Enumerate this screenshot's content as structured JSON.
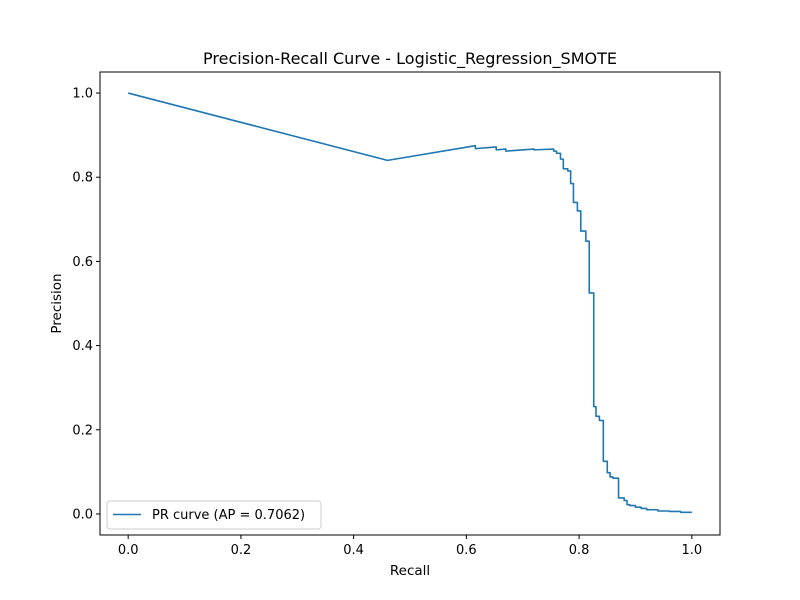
{
  "colors": {
    "series": "#1f77b4",
    "axes": "#000000",
    "background": "#ffffff",
    "legend_border": "#cccccc"
  },
  "chart_data": {
    "type": "line",
    "title": "Precision-Recall Curve - Logistic_Regression_SMOTE",
    "xlabel": "Recall",
    "ylabel": "Precision",
    "xlim": [
      -0.05,
      1.05
    ],
    "ylim": [
      -0.05,
      1.05
    ],
    "xticks": [
      0.0,
      0.2,
      0.4,
      0.6,
      0.8,
      1.0
    ],
    "yticks": [
      0.0,
      0.2,
      0.4,
      0.6,
      0.8,
      1.0
    ],
    "xtick_labels": [
      "0.0",
      "0.2",
      "0.4",
      "0.6",
      "0.8",
      "1.0"
    ],
    "ytick_labels": [
      "0.0",
      "0.2",
      "0.4",
      "0.6",
      "0.8",
      "1.0"
    ],
    "grid": false,
    "legend": {
      "placement": "lower-left",
      "entries": [
        "PR curve (AP = 0.7062)"
      ]
    },
    "series": [
      {
        "name": "PR curve (AP = 0.7062)",
        "color": "#1f77b4",
        "x": [
          0.0,
          0.46,
          0.616,
          0.616,
          0.653,
          0.653,
          0.67,
          0.67,
          0.72,
          0.72,
          0.755,
          0.755,
          0.76,
          0.76,
          0.767,
          0.767,
          0.772,
          0.772,
          0.78,
          0.78,
          0.785,
          0.785,
          0.79,
          0.79,
          0.797,
          0.797,
          0.803,
          0.803,
          0.812,
          0.812,
          0.818,
          0.818,
          0.826,
          0.826,
          0.83,
          0.83,
          0.836,
          0.836,
          0.843,
          0.843,
          0.85,
          0.85,
          0.855,
          0.855,
          0.86,
          0.86,
          0.87,
          0.87,
          0.88,
          0.88,
          0.885,
          0.885,
          0.89,
          0.89,
          0.9,
          0.9,
          0.91,
          0.91,
          0.92,
          0.92,
          0.94,
          0.94,
          0.96,
          0.96,
          0.98,
          0.98,
          1.0
        ],
        "y": [
          1.0,
          0.84,
          0.875,
          0.868,
          0.872,
          0.865,
          0.867,
          0.862,
          0.867,
          0.865,
          0.867,
          0.862,
          0.862,
          0.857,
          0.857,
          0.843,
          0.843,
          0.82,
          0.82,
          0.815,
          0.815,
          0.785,
          0.785,
          0.74,
          0.74,
          0.72,
          0.72,
          0.672,
          0.672,
          0.648,
          0.648,
          0.525,
          0.525,
          0.255,
          0.255,
          0.232,
          0.232,
          0.222,
          0.222,
          0.125,
          0.125,
          0.098,
          0.098,
          0.088,
          0.088,
          0.085,
          0.085,
          0.038,
          0.038,
          0.032,
          0.032,
          0.022,
          0.022,
          0.02,
          0.02,
          0.016,
          0.016,
          0.013,
          0.013,
          0.01,
          0.01,
          0.007,
          0.007,
          0.006,
          0.006,
          0.004,
          0.004
        ]
      }
    ]
  }
}
